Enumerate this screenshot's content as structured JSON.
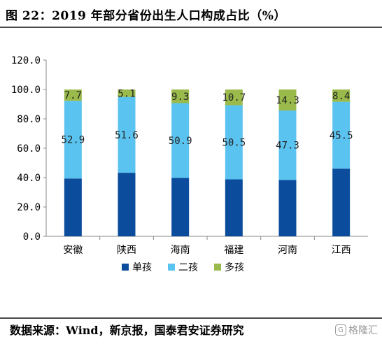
{
  "figure": {
    "title": "图 22：2019 年部分省份出生人口构成占比（%）",
    "source": "数据来源：Wind，新京报，国泰君安证券研究",
    "watermark": "格隆汇"
  },
  "colors": {
    "series": [
      "#0b4d9c",
      "#5bc3ef",
      "#9aba4b"
    ],
    "axis": "#888888",
    "rule": "#4a4a4a"
  },
  "chart_data": {
    "type": "bar",
    "stacked": true,
    "categories": [
      "安徽",
      "陕西",
      "海南",
      "福建",
      "河南",
      "江西"
    ],
    "series": [
      {
        "name": "单孩",
        "values": [
          39.4,
          43.3,
          39.8,
          38.8,
          38.4,
          46.1
        ],
        "labels": [
          "",
          "",
          "",
          "",
          "",
          ""
        ]
      },
      {
        "name": "二孩",
        "values": [
          52.9,
          51.6,
          50.9,
          50.5,
          47.3,
          45.5
        ],
        "labels": [
          "52.9",
          "51.6",
          "50.9",
          "50.5",
          "47.3",
          "45.5"
        ]
      },
      {
        "name": "多孩",
        "values": [
          7.7,
          5.1,
          9.3,
          10.7,
          14.3,
          8.4
        ],
        "labels": [
          "7.7",
          "5.1",
          "9.3",
          "10.7",
          "14.3",
          "8.4"
        ]
      }
    ],
    "yticks": [
      "0.0",
      "20.0",
      "40.0",
      "60.0",
      "80.0",
      "100.0",
      "120.0"
    ],
    "ylim": [
      0,
      120
    ],
    "grid": false,
    "legend_position": "bottom"
  }
}
